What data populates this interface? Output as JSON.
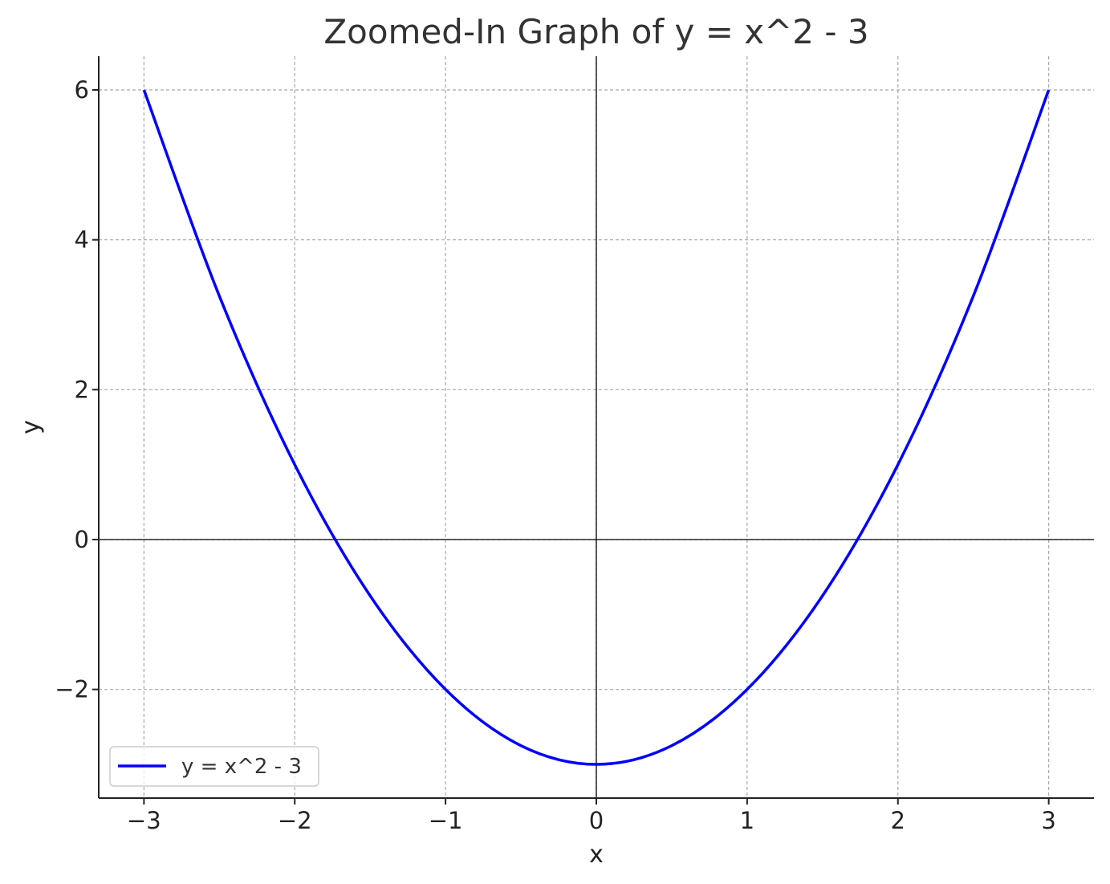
{
  "chart_data": {
    "type": "line",
    "title": "Zoomed-In Graph of y = x^2 - 3",
    "xlabel": "x",
    "ylabel": "y",
    "xlim": [
      -3.3,
      3.3
    ],
    "ylim": [
      -3.45,
      6.45
    ],
    "x_ticks": [
      -3,
      -2,
      -1,
      0,
      1,
      2,
      3
    ],
    "x_tick_labels": [
      "−3",
      "−2",
      "−1",
      "0",
      "1",
      "2",
      "3"
    ],
    "y_ticks": [
      -2,
      0,
      2,
      4,
      6
    ],
    "y_tick_labels": [
      "−2",
      "0",
      "2",
      "4",
      "6"
    ],
    "grid": true,
    "reference_lines": {
      "x": 0,
      "y": 0
    },
    "legend_position": "lower-left",
    "series": [
      {
        "name": "y = x^2 - 3",
        "color": "#0000ff",
        "x": [
          -3.0,
          -2.5,
          -2.0,
          -1.5,
          -1.0,
          -0.5,
          0.0,
          0.5,
          1.0,
          1.5,
          2.0,
          2.5,
          3.0
        ],
        "y": [
          6.0,
          3.25,
          1.0,
          -0.75,
          -2.0,
          -2.75,
          -3.0,
          -2.75,
          -2.0,
          -0.75,
          1.0,
          3.25,
          6.0
        ]
      }
    ]
  }
}
